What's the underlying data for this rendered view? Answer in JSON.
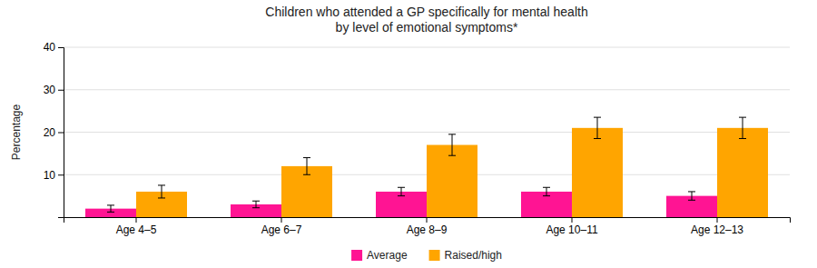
{
  "chart_data": {
    "type": "bar",
    "title": "Children who attended a GP specifically for mental health\nby level of emotional symptoms*",
    "ylabel": "Percentage",
    "categories": [
      "Age 4–5",
      "Age 6–7",
      "Age 8–9",
      "Age 10–11",
      "Age 12–13"
    ],
    "series": [
      {
        "name": "Average",
        "color": "#FF1493",
        "values": [
          2.0,
          3.0,
          6.0,
          6.0,
          5.0
        ],
        "errors": [
          0.8,
          0.8,
          1.0,
          1.0,
          1.0
        ]
      },
      {
        "name": "Raised/high",
        "color": "#FFA500",
        "values": [
          6.0,
          12.0,
          17.0,
          21.0,
          21.0
        ],
        "errors": [
          1.5,
          2.0,
          2.5,
          2.5,
          2.5
        ]
      }
    ],
    "ylim": [
      0,
      40
    ],
    "yticks": [
      10,
      20,
      30,
      40
    ],
    "grid": true,
    "legend": "bottom"
  }
}
